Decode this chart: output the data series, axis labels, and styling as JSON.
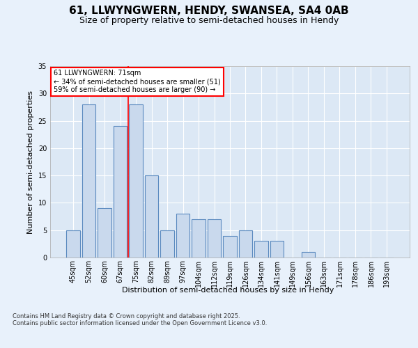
{
  "title_line1": "61, LLWYNGWERN, HENDY, SWANSEA, SA4 0AB",
  "title_line2": "Size of property relative to semi-detached houses in Hendy",
  "xlabel": "Distribution of semi-detached houses by size in Hendy",
  "ylabel": "Number of semi-detached properties",
  "categories": [
    "45sqm",
    "52sqm",
    "60sqm",
    "67sqm",
    "75sqm",
    "82sqm",
    "89sqm",
    "97sqm",
    "104sqm",
    "112sqm",
    "119sqm",
    "126sqm",
    "134sqm",
    "141sqm",
    "149sqm",
    "156sqm",
    "163sqm",
    "171sqm",
    "178sqm",
    "186sqm",
    "193sqm"
  ],
  "values": [
    5,
    28,
    9,
    24,
    28,
    15,
    5,
    8,
    7,
    7,
    4,
    5,
    3,
    3,
    0,
    1,
    0,
    0,
    0,
    0,
    0
  ],
  "bar_color": "#c9d9ed",
  "bar_edge_color": "#5b8abf",
  "background_color": "#e8f1fb",
  "plot_background": "#dce8f5",
  "red_line_x": 3.5,
  "annotation_text": "61 LLWYNGWERN: 71sqm\n← 34% of semi-detached houses are smaller (51)\n59% of semi-detached houses are larger (90) →",
  "annotation_box_color": "white",
  "annotation_box_edge": "red",
  "ylim": [
    0,
    35
  ],
  "yticks": [
    0,
    5,
    10,
    15,
    20,
    25,
    30,
    35
  ],
  "footer_text": "Contains HM Land Registry data © Crown copyright and database right 2025.\nContains public sector information licensed under the Open Government Licence v3.0.",
  "grid_color": "white",
  "title_fontsize": 11,
  "subtitle_fontsize": 9,
  "tick_fontsize": 7,
  "label_fontsize": 8,
  "footer_fontsize": 6
}
